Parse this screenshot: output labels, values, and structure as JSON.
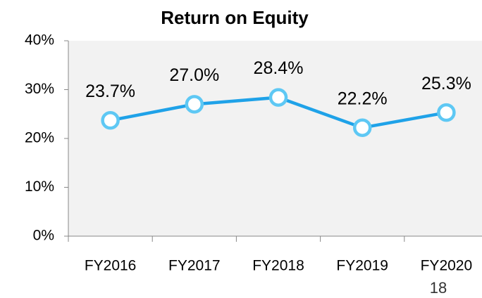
{
  "chart_data": {
    "type": "line",
    "title": "Return on Equity",
    "categories": [
      "FY2016",
      "FY2017",
      "FY2018",
      "FY2019",
      "FY2020"
    ],
    "series": [
      {
        "name": "Return on Equity",
        "color": "#1fa2e8",
        "values": [
          23.7,
          27.0,
          28.4,
          22.2,
          25.3
        ],
        "value_labels": [
          "23.7%",
          "27.0%",
          "28.4%",
          "22.2%",
          "25.3%"
        ]
      }
    ],
    "ylim": [
      0,
      40
    ],
    "yticks": [
      {
        "value": 0,
        "label": "0%"
      },
      {
        "value": 10,
        "label": "10%"
      },
      {
        "value": 20,
        "label": "20%"
      },
      {
        "value": 30,
        "label": "30%"
      },
      {
        "value": 40,
        "label": "40%"
      }
    ],
    "grid": false
  },
  "page_number": "18"
}
